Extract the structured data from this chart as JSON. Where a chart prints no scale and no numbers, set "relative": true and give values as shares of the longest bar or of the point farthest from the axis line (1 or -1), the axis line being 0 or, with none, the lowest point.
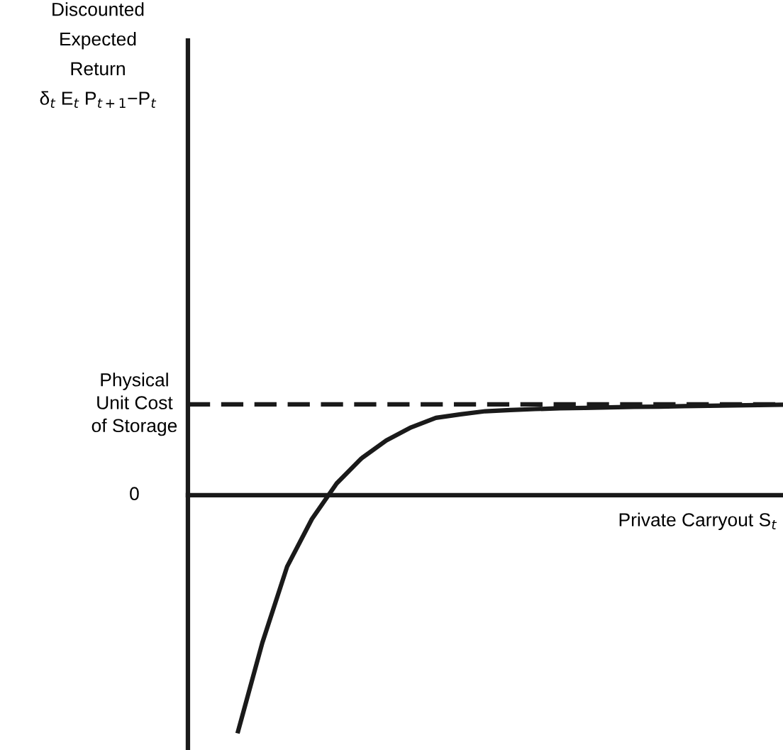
{
  "chart_data": {
    "type": "line",
    "relative": true,
    "ylabel": "Discounted\nExpected\nReturn\nδ$_{t}$ E$_{t}$ P$_{t+1}$−P$_{t}$",
    "xlabel": "Private Carryout S$_{t}$",
    "categories": [
      null,
      null,
      null,
      null,
      null,
      null,
      null,
      null,
      null,
      null,
      null,
      null,
      null,
      null,
      null,
      null,
      null,
      null,
      null,
      null,
      null,
      null,
      null,
      null,
      null
    ],
    "series": [
      {
        "color": "#1a1a1a",
        "values": [
          null,
          null,
          -1.0,
          -0.62,
          -0.3,
          -0.1,
          0.05,
          0.155,
          0.23,
          0.285,
          0.325,
          0.34,
          0.353,
          0.358,
          0.362,
          0.365,
          0.367,
          0.369,
          0.371,
          0.372,
          0.374,
          0.376,
          0.377,
          0.379,
          0.38
        ]
      }
    ],
    "ref_lines": [
      {
        "axis": "y",
        "value": 0.382,
        "label": "Physical\nUnit Cost\nof Storage",
        "color": "#1a1a1a",
        "line_style": "dashed"
      }
    ],
    "annotations": [
      "0"
    ],
    "marker": "none",
    "line_style": "solid"
  }
}
